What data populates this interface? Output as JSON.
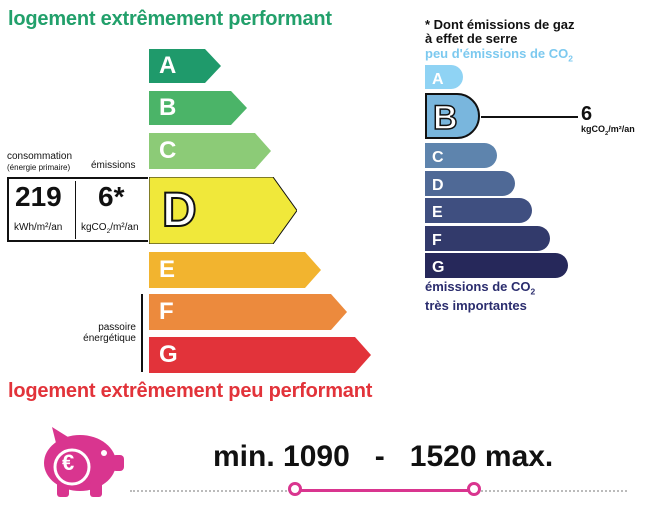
{
  "energy": {
    "top_label": "logement extrêmement performant",
    "bottom_label": "logement extrêmement peu performant",
    "classes": [
      {
        "letter": "A",
        "color": "#1f9a6b"
      },
      {
        "letter": "B",
        "color": "#4bb468"
      },
      {
        "letter": "C",
        "color": "#8ccb77"
      },
      {
        "letter": "D",
        "color": "#f0e83a"
      },
      {
        "letter": "E",
        "color": "#f2b42f"
      },
      {
        "letter": "F",
        "color": "#ec8a3d"
      },
      {
        "letter": "G",
        "color": "#e2333a"
      }
    ],
    "current_class": "D",
    "consumption_label": "consommation",
    "consumption_sublabel": "(énergie primaire)",
    "emissions_label": "émissions",
    "consumption_value": "219",
    "consumption_unit": "kWh/m²/an",
    "emissions_value": "6*",
    "emissions_unit_prefix": "kgCO",
    "emissions_unit_sub": "2",
    "emissions_unit_suffix": "/m²/an",
    "passoire_line1": "passoire",
    "passoire_line2": "énergétique"
  },
  "ghg": {
    "header_line1": "* Dont émissions de gaz",
    "header_line2": "à effet de serre",
    "top_prefix": "peu d'émissions de CO",
    "top_sub": "2",
    "bottom_line1_prefix": "émissions de CO",
    "bottom_line1_sub": "2",
    "bottom_line2": "très importantes",
    "classes": [
      {
        "letter": "A",
        "color": "#8fd3f4"
      },
      {
        "letter": "B",
        "color": "#79b6dd"
      },
      {
        "letter": "C",
        "color": "#5e84ad"
      },
      {
        "letter": "D",
        "color": "#4f6996"
      },
      {
        "letter": "E",
        "color": "#3f4f80"
      },
      {
        "letter": "F",
        "color": "#323a6b"
      },
      {
        "letter": "G",
        "color": "#26285a"
      }
    ],
    "current_class": "B",
    "value": "6",
    "unit_prefix": "kgCO",
    "unit_sub": "2",
    "unit_suffix": "/m²/an"
  },
  "cost": {
    "min_label": "min.",
    "min_value": "1090",
    "dash": "-",
    "max_value": "1520",
    "max_label": "max.",
    "icon": "piggy-bank-euro-icon",
    "accent_color": "#d9358f",
    "euro_symbol": "€"
  }
}
